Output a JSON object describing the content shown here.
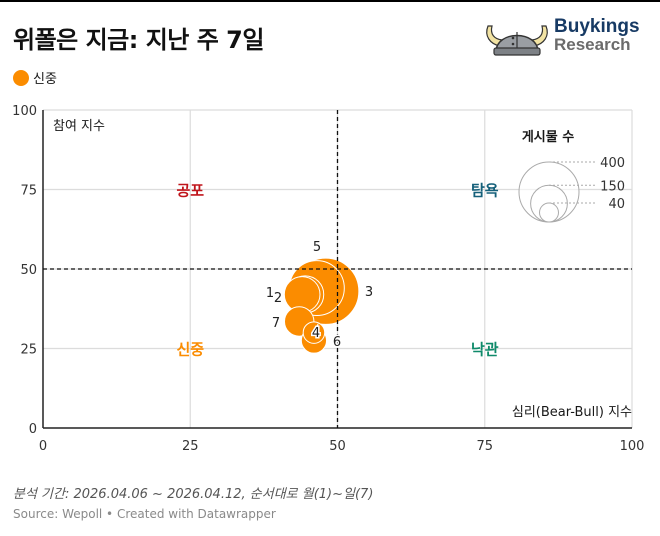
{
  "header": {
    "title": "위폴은 지금: 지난 주 7일",
    "legend": [
      {
        "label": "신중",
        "color": "#fb8c00"
      }
    ]
  },
  "logo": {
    "line1": "Buykings",
    "line2": "Research",
    "icon": "viking-helmet-icon"
  },
  "chart_data": {
    "type": "scatter",
    "subtype": "bubble",
    "title": "위폴은 지금: 지난 주 7일",
    "xlabel": "심리(Bear-Bull) 지수",
    "ylabel": "참여 지수",
    "xlim": [
      0,
      100
    ],
    "ylim": [
      0,
      100
    ],
    "x_ticks": [
      "0",
      "25",
      "50",
      "75",
      "100"
    ],
    "y_ticks": [
      "0",
      "25",
      "50",
      "75",
      "100"
    ],
    "grid": true,
    "reference_lines": {
      "x": 50,
      "y": 50
    },
    "quadrants": [
      {
        "label": "공포",
        "x": 25,
        "y": 75,
        "color": "#c0151b"
      },
      {
        "label": "탐욕",
        "x": 75,
        "y": 75,
        "color": "#15607a"
      },
      {
        "label": "신중",
        "x": 25,
        "y": 25,
        "color": "#fb8c00"
      },
      {
        "label": "낙관",
        "x": 75,
        "y": 25,
        "color": "#0f8a6a"
      }
    ],
    "size_legend": {
      "title": "게시물 수",
      "values": [
        400,
        150,
        40
      ]
    },
    "series": [
      {
        "name": "신중",
        "color": "#fb8c00",
        "points": [
          {
            "label": "1",
            "x": 44,
            "y": 42,
            "size": 110
          },
          {
            "label": "2",
            "x": 44.5,
            "y": 42,
            "size": 120
          },
          {
            "label": "3",
            "x": 48,
            "y": 43,
            "size": 380
          },
          {
            "label": "4",
            "x": 46,
            "y": 30,
            "size": 40
          },
          {
            "label": "5",
            "x": 46.5,
            "y": 44,
            "size": 260
          },
          {
            "label": "6",
            "x": 46,
            "y": 27.5,
            "size": 55
          },
          {
            "label": "7",
            "x": 43.5,
            "y": 33.5,
            "size": 75
          }
        ]
      }
    ]
  },
  "footer": {
    "note": "분석 기간: 2026.04.06 ~ 2026.04.12, 순서대로 월(1)~일(7)",
    "source": "Source: Wepoll • Created with Datawrapper"
  }
}
